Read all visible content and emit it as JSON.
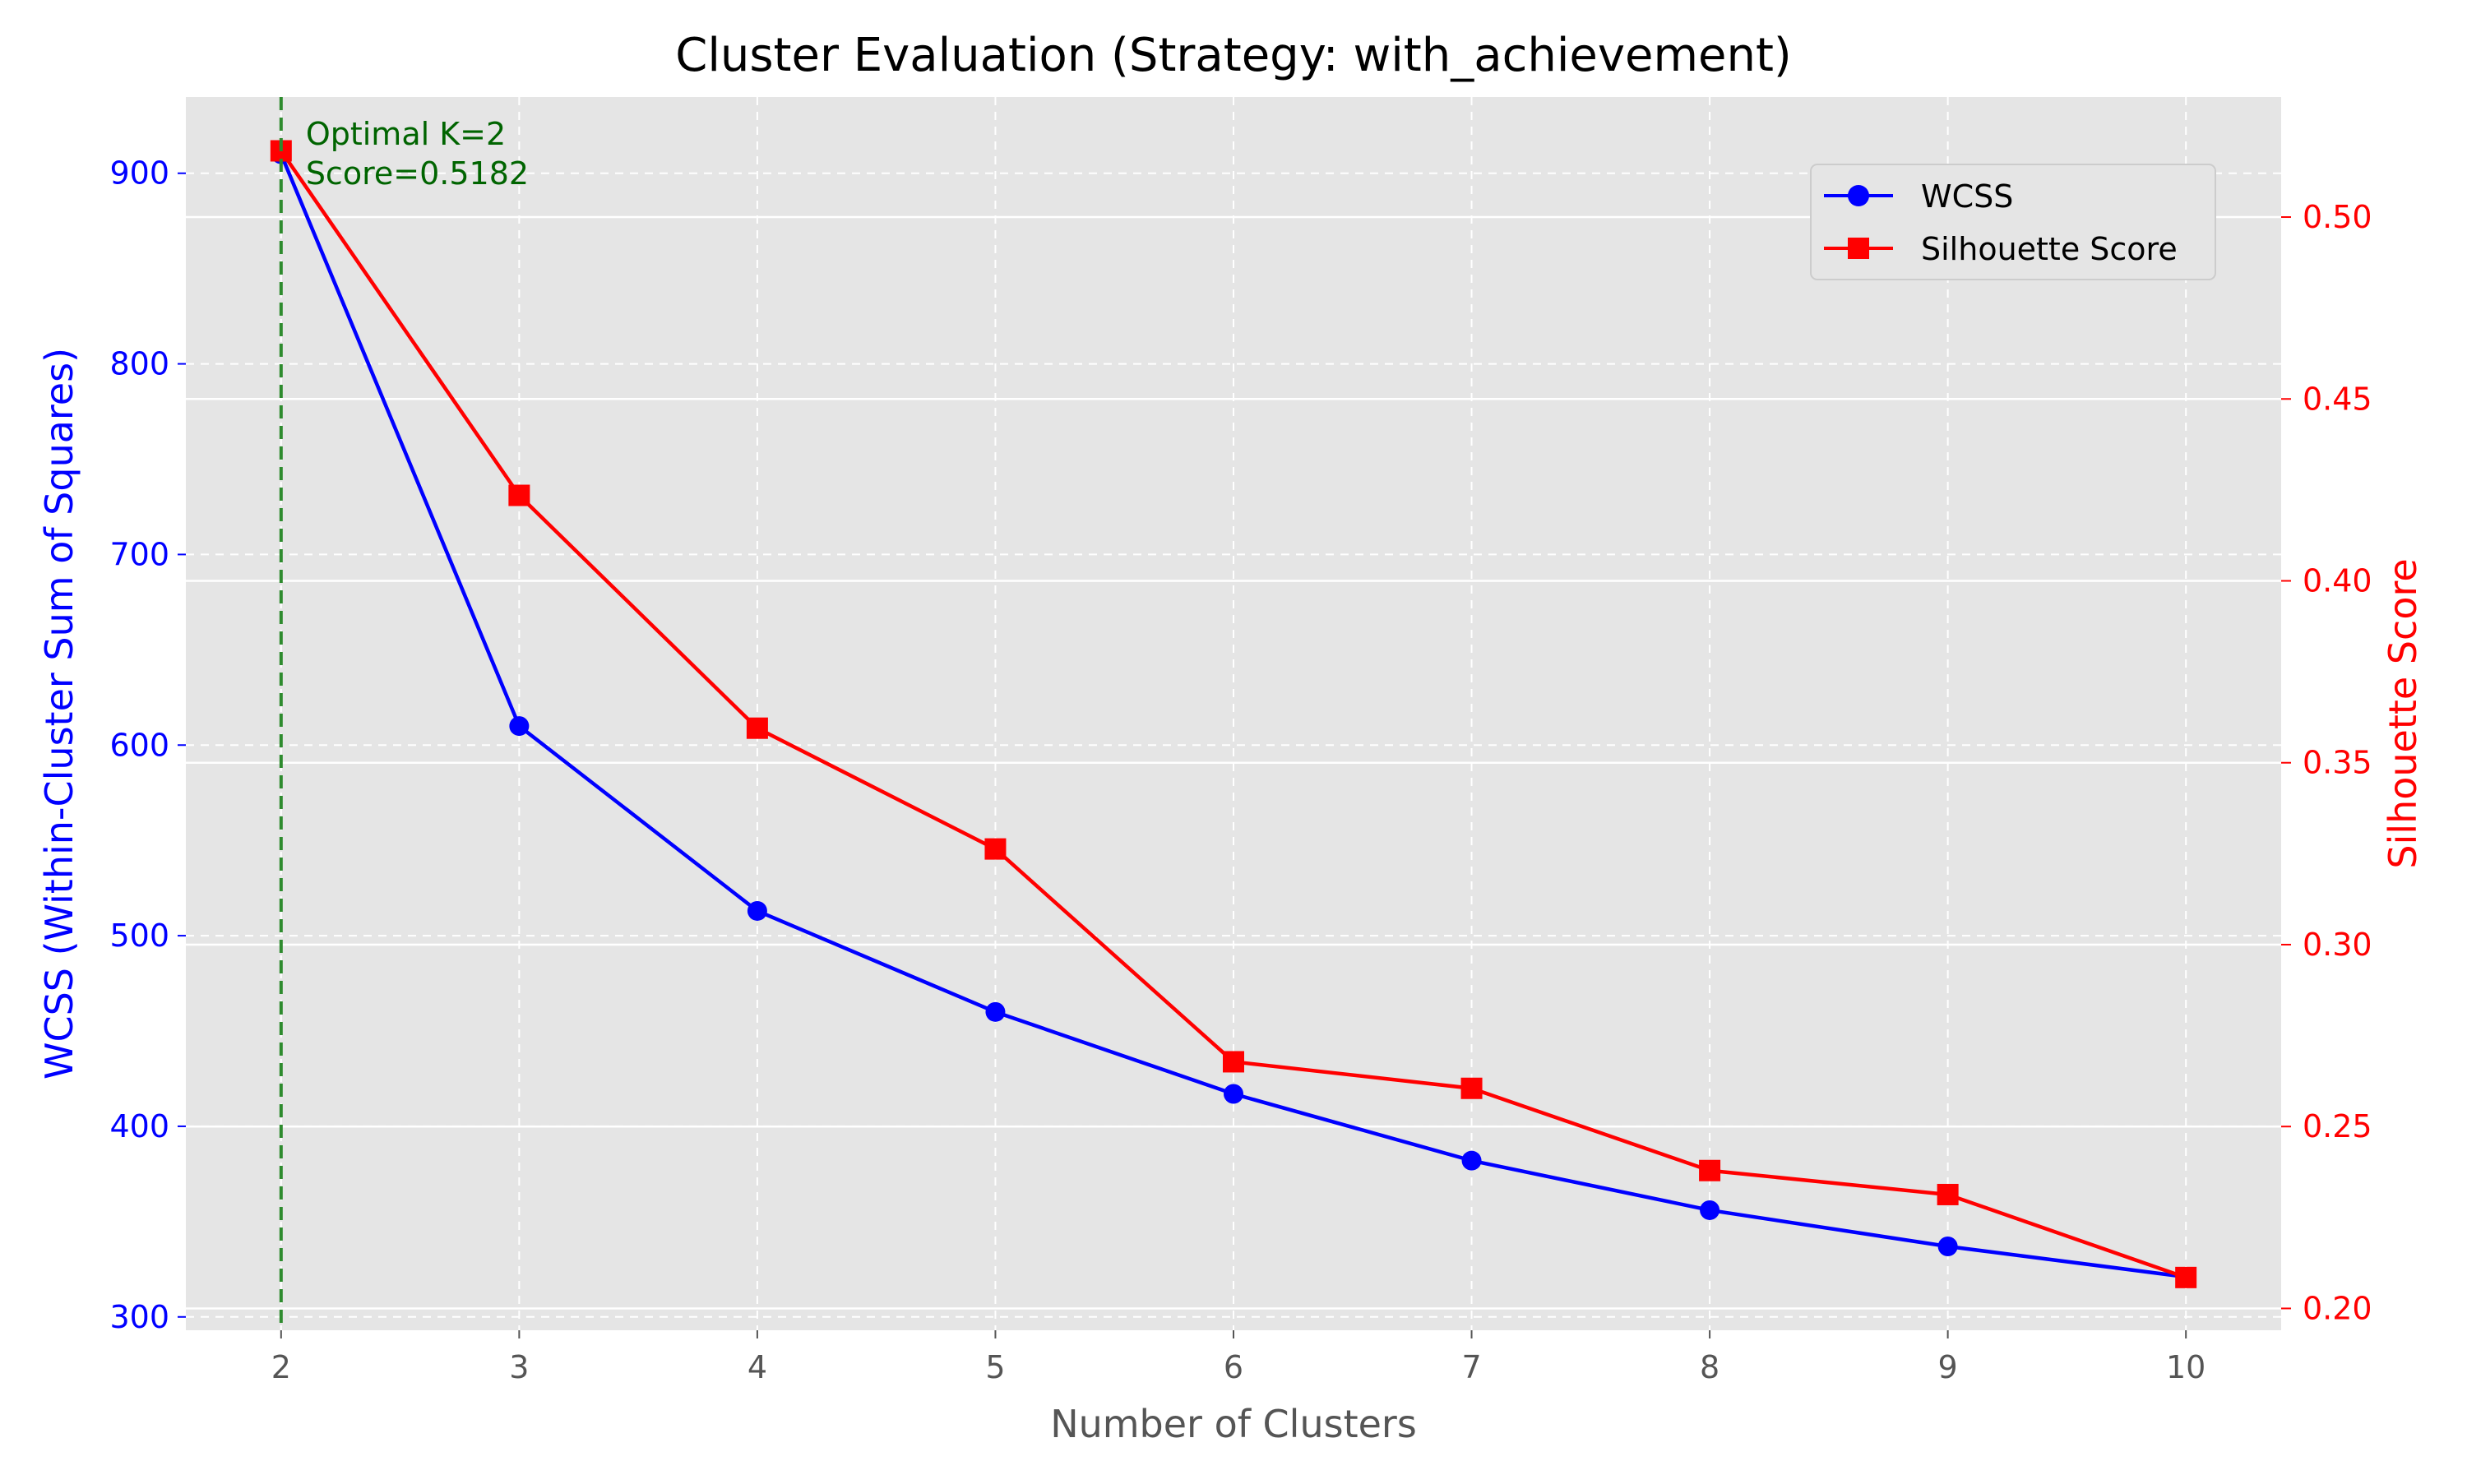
{
  "chart_data": {
    "type": "line",
    "title": "Cluster Evaluation (Strategy: with_achievement)",
    "xlabel": "Number of Clusters",
    "ylabel_left": "WCSS (Within-Cluster Sum of Squares)",
    "ylabel_right": "Silhouette Score",
    "x": [
      2,
      3,
      4,
      5,
      6,
      7,
      8,
      9,
      10
    ],
    "xlim": [
      1.6,
      10.4
    ],
    "ylim_left": [
      293,
      940
    ],
    "ylim_right": [
      0.194,
      0.533
    ],
    "yticks_left": [
      300,
      400,
      500,
      600,
      700,
      800,
      900
    ],
    "yticks_right": [
      0.2,
      0.25,
      0.3,
      0.35,
      0.4,
      0.45,
      0.5
    ],
    "yticklabels_right": [
      "0.20",
      "0.25",
      "0.30",
      "0.35",
      "0.40",
      "0.45",
      "0.50"
    ],
    "grid": true,
    "legend_position": "upper right",
    "series": [
      {
        "name": "WCSS",
        "axis": "left",
        "color": "#0000ff",
        "marker": "circle",
        "values": [
          910,
          610,
          513,
          460,
          417,
          382,
          356,
          337,
          321
        ]
      },
      {
        "name": "Silhouette Score",
        "axis": "right",
        "color": "#ff0000",
        "marker": "square",
        "values": [
          0.5182,
          0.4235,
          0.3595,
          0.3263,
          0.2678,
          0.2605,
          0.2379,
          0.2313,
          0.2085
        ]
      }
    ],
    "optimal_line": {
      "x": 2,
      "color": "#2e8b2e"
    },
    "annotation": {
      "lines": [
        "Optimal K=2",
        "Score=0.5182"
      ],
      "color": "#006400"
    },
    "colors": {
      "plot_bg": "#e5e5e5",
      "grid": "#ffffff",
      "left_axis": "#0000ff",
      "right_axis": "#ff0000",
      "x_axis": "#555555"
    }
  }
}
